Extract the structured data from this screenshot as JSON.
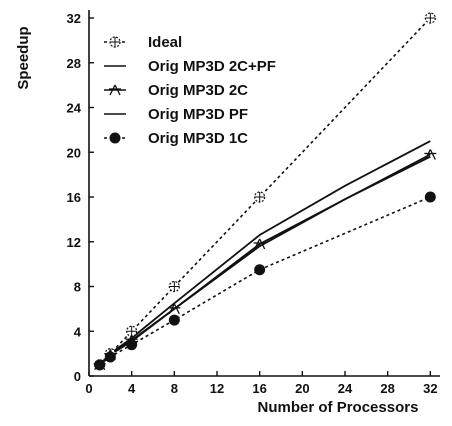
{
  "chart_data": {
    "type": "line",
    "title": "",
    "xlabel": "Number of Processors",
    "ylabel": "Speedup",
    "xlim": [
      0,
      33
    ],
    "ylim": [
      0,
      33
    ],
    "xticks": [
      0,
      4,
      8,
      12,
      16,
      20,
      24,
      28,
      32
    ],
    "yticks": [
      0,
      4,
      8,
      12,
      16,
      20,
      24,
      28,
      32
    ],
    "grid": false,
    "legend_position": "top-left",
    "series": [
      {
        "name": "Ideal",
        "style": "dotted",
        "marker": "circle-cross-open",
        "color": "#111111",
        "x": [
          1,
          2,
          4,
          8,
          16,
          32
        ],
        "y": [
          1,
          2,
          4,
          8,
          16,
          32
        ]
      },
      {
        "name": "Orig MP3D 2C+PF",
        "style": "solid",
        "marker": "none",
        "color": "#111111",
        "x": [
          1,
          2,
          4,
          8,
          16,
          24,
          32
        ],
        "y": [
          1,
          2,
          3.4,
          6.5,
          12.6,
          17,
          21
        ]
      },
      {
        "name": "Orig MP3D 2C",
        "style": "solid",
        "marker": "star",
        "color": "#111111",
        "x": [
          1,
          2,
          4,
          8,
          16,
          32
        ],
        "y": [
          1,
          1.9,
          3.2,
          6,
          11.8,
          19.8
        ]
      },
      {
        "name": "Orig MP3D PF",
        "style": "solid",
        "marker": "none",
        "color": "#111111",
        "x": [
          1,
          2,
          4,
          8,
          16,
          24,
          32
        ],
        "y": [
          1,
          1.9,
          3.1,
          6,
          11.6,
          15.8,
          19.6
        ]
      },
      {
        "name": "Orig MP3D 1C",
        "style": "dotted",
        "marker": "filled-circle",
        "color": "#111111",
        "x": [
          1,
          2,
          4,
          8,
          16,
          32
        ],
        "y": [
          1,
          1.7,
          2.8,
          5,
          9.5,
          16
        ]
      }
    ]
  }
}
